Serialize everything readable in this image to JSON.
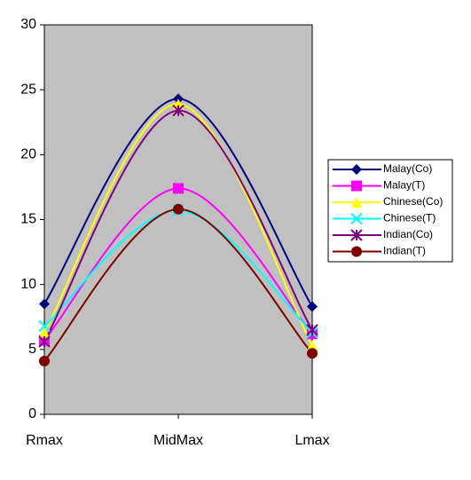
{
  "chart_data": {
    "type": "line",
    "smooth": true,
    "categories": [
      "Rmax",
      "MidMax",
      "Lmax"
    ],
    "ylim": [
      0,
      30
    ],
    "yticks": [
      0,
      5,
      10,
      15,
      20,
      25,
      30
    ],
    "plot_background": "#c0c0c0",
    "legend": "right",
    "series": [
      {
        "name": "Malay(Co)",
        "color": "#000080",
        "marker": "diamond",
        "values": [
          8.5,
          24.3,
          8.3
        ]
      },
      {
        "name": "Malay(T)",
        "color": "#ff00ff",
        "marker": "square",
        "values": [
          5.7,
          17.4,
          6.2
        ]
      },
      {
        "name": "Chinese(Co)",
        "color": "#ffff00",
        "marker": "triangle",
        "values": [
          6.3,
          23.9,
          5.3
        ]
      },
      {
        "name": "Chinese(T)",
        "color": "#00ffff",
        "marker": "x",
        "values": [
          6.8,
          15.7,
          6.3
        ]
      },
      {
        "name": "Indian(Co)",
        "color": "#800080",
        "marker": "star",
        "values": [
          5.6,
          23.4,
          6.5
        ]
      },
      {
        "name": "Indian(T)",
        "color": "#800000",
        "marker": "circle",
        "values": [
          4.1,
          15.8,
          4.7
        ]
      }
    ]
  }
}
